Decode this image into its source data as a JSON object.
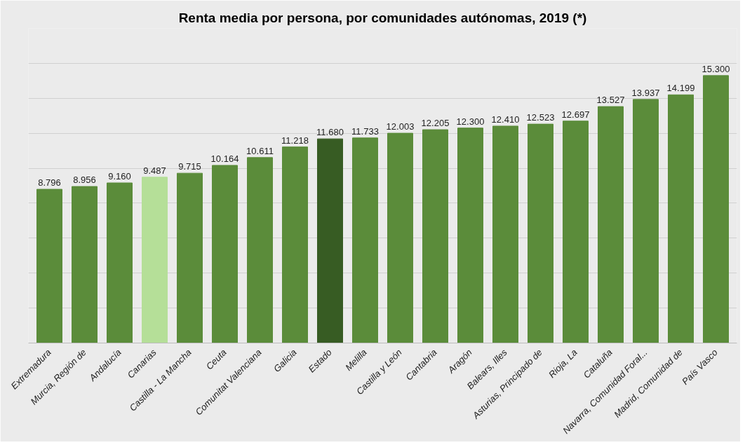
{
  "chart_data": {
    "type": "bar",
    "title": "Renta media por persona, por comunidades autónomas, 2019 (*)",
    "categories": [
      "Extremadura",
      "Murcia, Región de",
      "Andalucía",
      "Canarias",
      "Castilla - La Mancha",
      "Ceuta",
      "Comunitat Valenciana",
      "Galicia",
      "Estado",
      "Melilla",
      "Castilla y León",
      "Cantabria",
      "Aragón",
      "Balears, Illes",
      "Asturias, Principado de",
      "Rioja, La",
      "Cataluña",
      "Navarra, Comunidad Foral...",
      "Madrid, Comunidad de",
      "País Vasco"
    ],
    "values": [
      8796,
      8956,
      9160,
      9487,
      9715,
      10164,
      10611,
      11218,
      11680,
      11733,
      12003,
      12205,
      12300,
      12410,
      12523,
      12697,
      13527,
      13937,
      14199,
      15300
    ],
    "value_labels": [
      "8.796",
      "8.956",
      "9.160",
      "9.487",
      "9.715",
      "10.164",
      "10.611",
      "11.218",
      "11.680",
      "11.733",
      "12.003",
      "12.205",
      "12.300",
      "12.410",
      "12.523",
      "12.697",
      "13.527",
      "13.937",
      "14.199",
      "15.300"
    ],
    "colors": [
      "#5b8c3a",
      "#5b8c3a",
      "#5b8c3a",
      "#b5df98",
      "#5b8c3a",
      "#5b8c3a",
      "#5b8c3a",
      "#5b8c3a",
      "#375c23",
      "#5b8c3a",
      "#5b8c3a",
      "#5b8c3a",
      "#5b8c3a",
      "#5b8c3a",
      "#5b8c3a",
      "#5b8c3a",
      "#5b8c3a",
      "#5b8c3a",
      "#5b8c3a",
      "#5b8c3a"
    ],
    "ylim": [
      0,
      18000
    ],
    "yticks": [
      {
        "value": 0,
        "label": null
      },
      {
        "value": 2000,
        "label": null
      },
      {
        "value": 4000,
        "label": null
      },
      {
        "value": 6000,
        "label": null
      },
      {
        "value": 8000,
        "label": null
      },
      {
        "value": 10000,
        "label": null
      },
      {
        "value": 12000,
        "label": null
      },
      {
        "value": 14000,
        "label": null
      },
      {
        "value": 16000,
        "label": null
      },
      {
        "value": 18000,
        "label": null
      }
    ],
    "tick_labels": "x",
    "grid": "y"
  }
}
